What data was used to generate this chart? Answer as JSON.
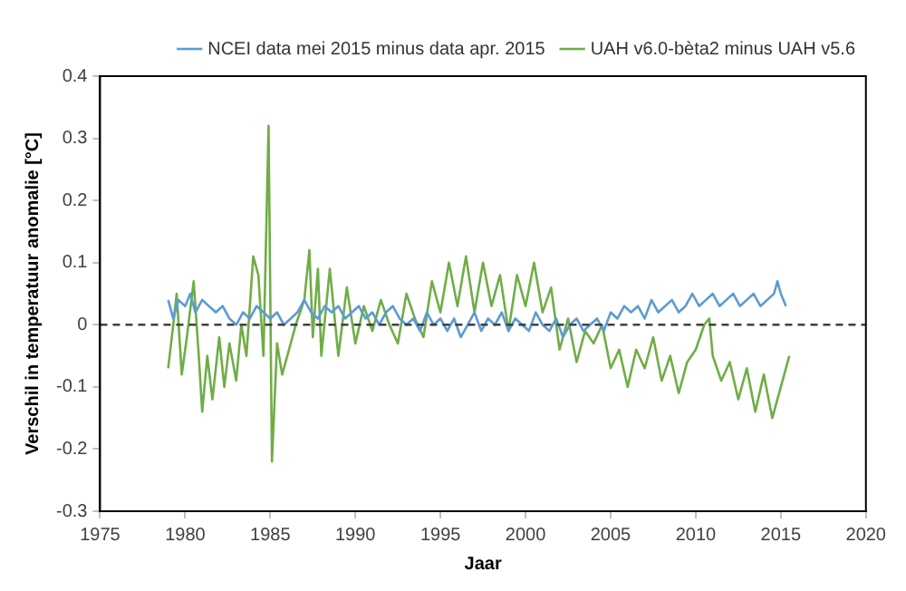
{
  "chart_data": {
    "type": "line",
    "xlabel": "Jaar",
    "ylabel": "Verschil in temperatuur anomalie [°C]",
    "xlim": [
      1975,
      2020
    ],
    "xticks": [
      1975,
      1980,
      1985,
      1990,
      1995,
      2000,
      2005,
      2010,
      2015,
      2020
    ],
    "ylim": [
      -0.3,
      0.4
    ],
    "yticks": [
      -0.3,
      -0.2,
      -0.1,
      0,
      0.1,
      0.2,
      0.3,
      0.4
    ],
    "grid": false,
    "legend": "top right",
    "marker": "none",
    "line_style": "solid",
    "ref_lines": [
      {
        "axis": "y",
        "value": 0,
        "color": "#404040",
        "line_style": "dashed"
      }
    ],
    "series": [
      {
        "name": "NCEI data mei 2015 minus data apr. 2015",
        "color": "#5b9bd5",
        "x": [
          1979,
          1979.3,
          1979.6,
          1980,
          1980.3,
          1980.6,
          1981,
          1981.4,
          1981.8,
          1982.2,
          1982.6,
          1983,
          1983.4,
          1983.8,
          1984.2,
          1984.6,
          1985,
          1985.4,
          1985.8,
          1986.2,
          1986.6,
          1987,
          1987.4,
          1987.8,
          1988.2,
          1988.6,
          1989,
          1989.4,
          1989.8,
          1990.2,
          1990.6,
          1991,
          1991.4,
          1991.8,
          1992.2,
          1992.6,
          1993,
          1993.4,
          1993.8,
          1994.2,
          1994.6,
          1995,
          1995.4,
          1995.8,
          1996.2,
          1996.6,
          1997,
          1997.4,
          1997.8,
          1998.2,
          1998.6,
          1999,
          1999.4,
          1999.8,
          2000.2,
          2000.6,
          2001,
          2001.4,
          2001.8,
          2002.2,
          2002.6,
          2003,
          2003.4,
          2003.8,
          2004.2,
          2004.6,
          2005,
          2005.4,
          2005.8,
          2006.2,
          2006.6,
          2007,
          2007.4,
          2007.8,
          2008.2,
          2008.6,
          2009,
          2009.4,
          2009.8,
          2010.2,
          2010.6,
          2011,
          2011.4,
          2011.8,
          2012.2,
          2012.6,
          2013,
          2013.4,
          2013.8,
          2014.2,
          2014.6,
          2014.8,
          2015,
          2015.3
        ],
        "values": [
          0.04,
          0.01,
          0.04,
          0.03,
          0.05,
          0.02,
          0.04,
          0.03,
          0.02,
          0.03,
          0.01,
          0.0,
          0.02,
          0.01,
          0.03,
          0.02,
          0.01,
          0.02,
          0.0,
          0.01,
          0.02,
          0.04,
          0.02,
          0.01,
          0.03,
          0.02,
          0.03,
          0.01,
          0.02,
          0.03,
          0.01,
          0.02,
          0.0,
          0.02,
          0.03,
          0.01,
          0.0,
          0.01,
          -0.01,
          0.02,
          0.0,
          0.01,
          -0.01,
          0.01,
          -0.02,
          0.0,
          0.02,
          -0.01,
          0.01,
          0.0,
          0.02,
          -0.01,
          0.01,
          0.0,
          -0.01,
          0.02,
          0.0,
          -0.01,
          0.01,
          -0.02,
          0.0,
          0.01,
          -0.01,
          0.0,
          0.01,
          -0.01,
          0.02,
          0.01,
          0.03,
          0.02,
          0.03,
          0.01,
          0.04,
          0.02,
          0.03,
          0.04,
          0.02,
          0.03,
          0.05,
          0.03,
          0.04,
          0.05,
          0.03,
          0.04,
          0.05,
          0.03,
          0.04,
          0.05,
          0.03,
          0.04,
          0.05,
          0.07,
          0.05,
          0.03
        ]
      },
      {
        "name": "UAH v6.0-bèta2 minus UAH v5.6",
        "color": "#70ad47",
        "x": [
          1979,
          1979.3,
          1979.5,
          1979.8,
          1980.1,
          1980.5,
          1980.8,
          1981,
          1981.3,
          1981.6,
          1982,
          1982.3,
          1982.6,
          1983,
          1983.3,
          1983.6,
          1984,
          1984.3,
          1984.6,
          1984.9,
          1985.1,
          1985.4,
          1985.7,
          1986,
          1986.5,
          1987,
          1987.3,
          1987.5,
          1987.8,
          1988,
          1988.5,
          1989,
          1989.5,
          1990,
          1990.5,
          1991,
          1991.5,
          1992,
          1992.5,
          1993,
          1993.5,
          1994,
          1994.5,
          1995,
          1995.5,
          1996,
          1996.5,
          1997,
          1997.5,
          1998,
          1998.5,
          1999,
          1999.5,
          2000,
          2000.5,
          2001,
          2001.5,
          2002,
          2002.5,
          2003,
          2003.5,
          2004,
          2004.5,
          2005,
          2005.5,
          2006,
          2006.5,
          2007,
          2007.5,
          2008,
          2008.5,
          2009,
          2009.5,
          2010,
          2010.5,
          2010.8,
          2011,
          2011.5,
          2012,
          2012.5,
          2013,
          2013.5,
          2014,
          2014.5,
          2015,
          2015.5
        ],
        "values": [
          -0.07,
          0.0,
          0.05,
          -0.08,
          -0.02,
          0.07,
          -0.05,
          -0.14,
          -0.05,
          -0.12,
          -0.02,
          -0.1,
          -0.03,
          -0.09,
          0.0,
          -0.05,
          0.11,
          0.08,
          -0.05,
          0.32,
          -0.22,
          -0.03,
          -0.08,
          -0.05,
          0.0,
          0.04,
          0.12,
          -0.02,
          0.09,
          -0.05,
          0.09,
          -0.05,
          0.06,
          -0.03,
          0.03,
          -0.01,
          0.04,
          0.0,
          -0.03,
          0.05,
          0.01,
          -0.02,
          0.07,
          0.02,
          0.1,
          0.03,
          0.11,
          0.02,
          0.1,
          0.03,
          0.08,
          -0.01,
          0.08,
          0.03,
          0.1,
          0.02,
          0.06,
          -0.04,
          0.01,
          -0.06,
          -0.01,
          -0.03,
          0.0,
          -0.07,
          -0.04,
          -0.1,
          -0.04,
          -0.07,
          -0.02,
          -0.09,
          -0.05,
          -0.11,
          -0.06,
          -0.04,
          0.0,
          0.01,
          -0.05,
          -0.09,
          -0.06,
          -0.12,
          -0.07,
          -0.14,
          -0.08,
          -0.15,
          -0.1,
          -0.05
        ]
      }
    ]
  }
}
